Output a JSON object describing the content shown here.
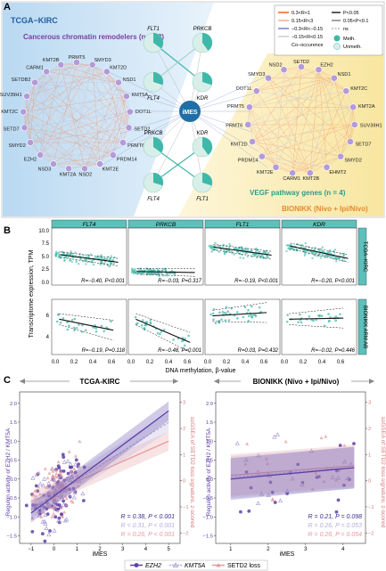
{
  "panelA": {
    "letter": "A",
    "cohort_left": "TCGA−KIRC",
    "cohort_right": "BIONIKK (Nivo + Ipi/Nivo)",
    "remodelers_title": "Cancerous chromatin remodelers (n = 22)",
    "vegf_title": "VEGF pathway genes (n = 4)",
    "center_label": "iMES",
    "left_genes": [
      "PRMT5",
      "SMYD3",
      "KMT2D",
      "NSD1",
      "KMT5A",
      "DOT1L",
      "SETD2",
      "PRMT6",
      "PRDM14",
      "KMT2E",
      "NSD2",
      "KMT2A",
      "NSD3",
      "EZH2",
      "SMYD2",
      "SETD7",
      "KMT2C",
      "SUV39H1",
      "SETDB2",
      "CARM1",
      "KMT2B"
    ],
    "right_genes": [
      "SETD2",
      "EZH2",
      "NSD1",
      "KMT2C",
      "KMT2A",
      "SUV39H1",
      "SETD7",
      "SMYD2",
      "EHMT2",
      "KMT2B",
      "CARM1",
      "KMT2E",
      "PRDM14",
      "KMT2D",
      "PRMT6",
      "PRMT5",
      "DOT1L",
      "SMYD3",
      "NSD2"
    ],
    "vegf_top": [
      "FLT1",
      "PRKCB",
      "FLT4",
      "KDR"
    ],
    "vegf_bottom": [
      "PRKCB",
      "KDR",
      "FLT4",
      "FLT1"
    ],
    "legend": {
      "r_items": [
        "0.3<R<1",
        "0.15<R<3",
        "−0.3<R<−0.15",
        "−0.15<R<0.15",
        "Co−occurence"
      ],
      "p_items": [
        "P<0.05",
        "0.05<P<0.1",
        "ns"
      ],
      "meth_items": [
        "Meth.",
        "Unmeth."
      ]
    },
    "colors": {
      "pos": "#f08a5d",
      "pos_light": "#f7c4ac",
      "neg": "#9aa0d8",
      "teal": "#3fb8a9",
      "node_purple": "#b39ad9",
      "imes": "#1f6fa6"
    }
  },
  "panelB": {
    "letter": "B",
    "ylabel": "Transcriptome expression, TPM",
    "xlabel": "DNA methylation, β-value",
    "genes": [
      "FLT4",
      "PRKCB",
      "FLT1",
      "KDR"
    ],
    "row_labels": [
      "TCGA−KIRC",
      "BIONIKK ARM AB"
    ],
    "row1_yticks": [
      "10.0",
      "7.5",
      "5.0",
      "2.5",
      "0.0"
    ],
    "row2_yticks": [
      "6",
      "4"
    ],
    "xticks": [
      "0.0",
      "0.2",
      "0.4",
      "0.6"
    ],
    "stats_row1": [
      "R=−0.40, P<0.001",
      "R=−0.03, P=0.317",
      "R=−0.19, P<0.001",
      "R=−0.20, P<0.001"
    ],
    "stats_row2": [
      "R=−0.19, P=0.118",
      "R=−0.48, P=0.001",
      "R=0.03, P=0.432",
      "R=−0.02, P=0.446"
    ]
  },
  "panelC": {
    "letter": "C",
    "left_title": "TCGA-KIRC",
    "right_title": "BIONIKK (Nivo + Ipi/Nivo)",
    "ylabel_left": "Regulon activity of EZH2 / KMT5A",
    "ylabel_right": "ssGSEA of SETD2 loss signature, z-scored",
    "xlabel": "iMES",
    "left_xticks": [
      "−1",
      "0",
      "1",
      "2",
      "3",
      "4",
      "5"
    ],
    "right_xticks": [
      "1",
      "2",
      "3",
      "4"
    ],
    "yticks": [
      "2.0",
      "1.5",
      "1.0",
      "0.5",
      "0.0",
      "−0.5",
      "−1.0",
      "−1.5"
    ],
    "r_yticks": [
      "3",
      "2",
      "1",
      "0",
      "−1",
      "−2"
    ],
    "stats_left": [
      "R = 0.38, P < 0.001",
      "R = 0.31, P < 0.001",
      "R = 0.26, P < 0.001"
    ],
    "stats_right": [
      "R = 0.21, P = 0.098",
      "R = 0.26, P = 0.053",
      "R = 0.26, P = 0.054"
    ],
    "legend": [
      "EZH2",
      "KMT5A",
      "SETD2 loss"
    ]
  },
  "chart_data": [
    {
      "type": "scatter",
      "title": "FLT4",
      "xlabel": "DNA methylation, β-value",
      "ylabel": "Transcriptome expression, TPM",
      "xlim": [
        0,
        0.7
      ],
      "ylim": [
        0,
        10
      ],
      "series": [
        {
          "name": "TCGA−KIRC",
          "fit": {
            "x": [
              0.05,
              0.65
            ],
            "y": [
              5.6,
              4.2
            ]
          }
        }
      ]
    },
    {
      "type": "scatter",
      "title": "PRKCB",
      "xlim": [
        0,
        0.7
      ],
      "ylim": [
        0,
        10
      ],
      "series": [
        {
          "name": "TCGA−KIRC",
          "fit": {
            "x": [
              0.05,
              0.65
            ],
            "y": [
              2.5,
              2.3
            ]
          }
        }
      ]
    },
    {
      "type": "scatter",
      "title": "FLT1",
      "xlim": [
        0,
        0.7
      ],
      "ylim": [
        0,
        10
      ],
      "series": [
        {
          "name": "TCGA−KIRC",
          "fit": {
            "x": [
              0.05,
              0.65
            ],
            "y": [
              7.0,
              5.5
            ]
          }
        }
      ]
    },
    {
      "type": "scatter",
      "title": "KDR",
      "xlim": [
        0,
        0.7
      ],
      "ylim": [
        0,
        10
      ],
      "series": [
        {
          "name": "TCGA−KIRC",
          "fit": {
            "x": [
              0.05,
              0.65
            ],
            "y": [
              7.2,
              4.9
            ]
          }
        }
      ]
    },
    {
      "type": "scatter",
      "title": "TCGA-KIRC",
      "xlabel": "iMES",
      "xlim": [
        -1.5,
        5.5
      ],
      "ylim": [
        -1.7,
        2.3
      ],
      "series": [
        {
          "name": "EZH2",
          "fit": {
            "x": [
              -1,
              5
            ],
            "y": [
              -0.9,
              1.8
            ]
          }
        },
        {
          "name": "KMT5A",
          "fit": {
            "x": [
              -1,
              5
            ],
            "y": [
              -0.8,
              1.5
            ]
          }
        },
        {
          "name": "SETD2 loss",
          "fit": {
            "x": [
              -1,
              5
            ],
            "y": [
              -0.6,
              1.0
            ]
          }
        }
      ]
    },
    {
      "type": "scatter",
      "title": "BIONIKK (Nivo + Ipi/Nivo)",
      "xlabel": "iMES",
      "xlim": [
        0.6,
        4.6
      ],
      "ylim": [
        -1.7,
        2.3
      ],
      "series": [
        {
          "name": "EZH2",
          "fit": {
            "x": [
              1,
              4.3
            ],
            "y": [
              0.0,
              0.3
            ]
          }
        },
        {
          "name": "KMT5A",
          "fit": {
            "x": [
              1,
              4.3
            ],
            "y": [
              0.05,
              0.3
            ]
          }
        },
        {
          "name": "SETD2 loss",
          "fit": {
            "x": [
              1,
              4.3
            ],
            "y": [
              0.1,
              0.35
            ]
          }
        }
      ]
    }
  ]
}
